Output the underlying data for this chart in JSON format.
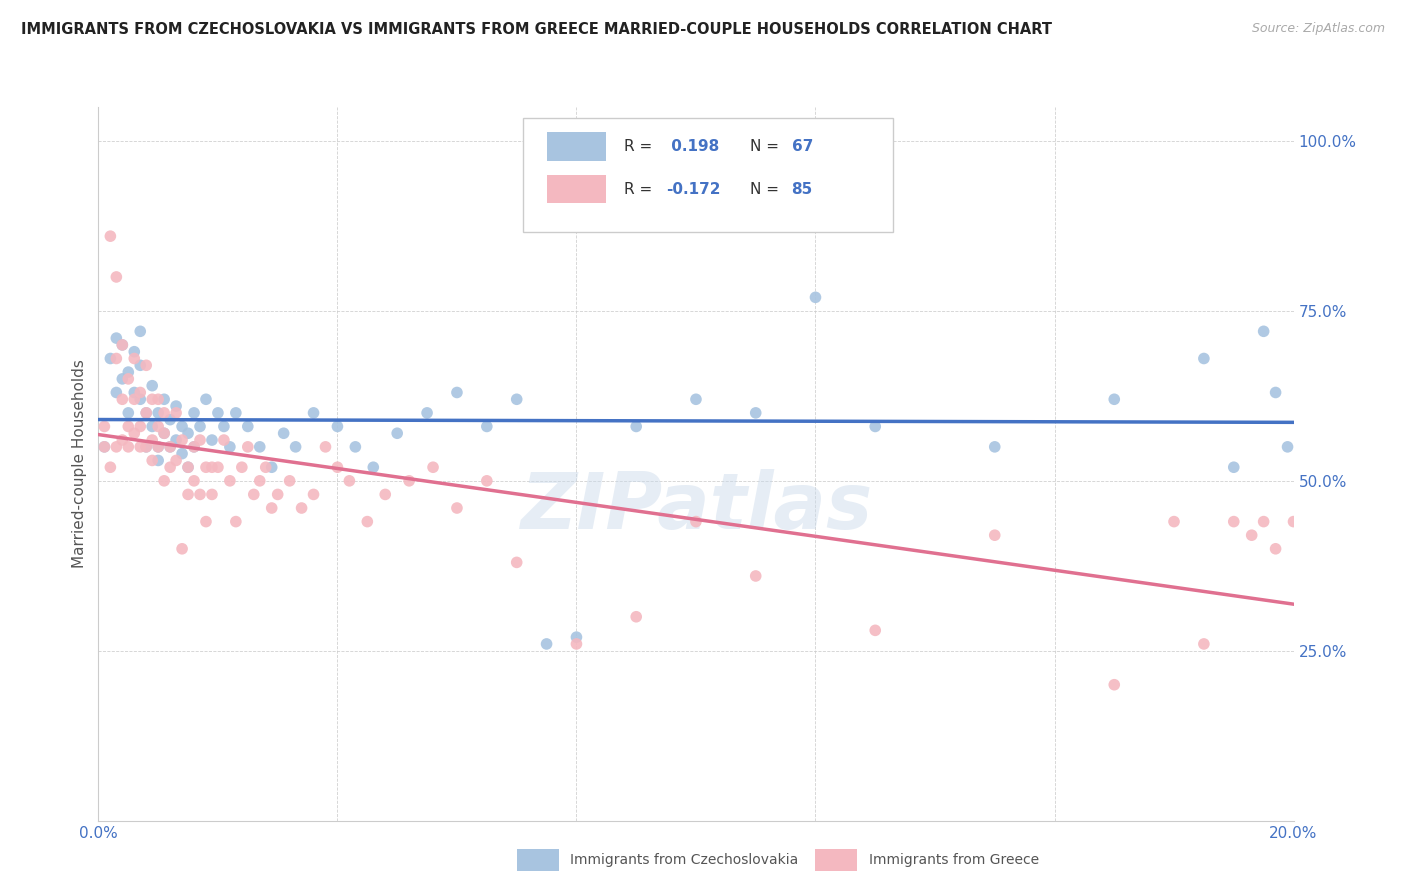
{
  "title": "IMMIGRANTS FROM CZECHOSLOVAKIA VS IMMIGRANTS FROM GREECE MARRIED-COUPLE HOUSEHOLDS CORRELATION CHART",
  "source": "Source: ZipAtlas.com",
  "ylabel": "Married-couple Households",
  "xmin": 0.0,
  "xmax": 0.2,
  "ymin": 0.0,
  "ymax": 1.05,
  "x_ticks": [
    0.0,
    0.04,
    0.08,
    0.12,
    0.16,
    0.2
  ],
  "y_ticks": [
    0.0,
    0.25,
    0.5,
    0.75,
    1.0
  ],
  "R_czech": 0.198,
  "N_czech": 67,
  "R_greece": -0.172,
  "N_greece": 85,
  "color_czech": "#a8c4e0",
  "color_greece": "#f4b8c0",
  "line_color_czech": "#4472c4",
  "line_color_greece": "#e07090",
  "watermark": "ZIPatlas",
  "czech_x": [
    0.001,
    0.002,
    0.003,
    0.003,
    0.004,
    0.004,
    0.005,
    0.005,
    0.006,
    0.006,
    0.007,
    0.007,
    0.007,
    0.008,
    0.008,
    0.009,
    0.009,
    0.01,
    0.01,
    0.01,
    0.011,
    0.011,
    0.012,
    0.012,
    0.013,
    0.013,
    0.014,
    0.014,
    0.015,
    0.015,
    0.016,
    0.016,
    0.017,
    0.018,
    0.019,
    0.02,
    0.021,
    0.022,
    0.023,
    0.025,
    0.027,
    0.029,
    0.031,
    0.033,
    0.036,
    0.04,
    0.043,
    0.046,
    0.05,
    0.055,
    0.06,
    0.065,
    0.07,
    0.075,
    0.08,
    0.09,
    0.1,
    0.11,
    0.12,
    0.13,
    0.15,
    0.17,
    0.185,
    0.19,
    0.195,
    0.197,
    0.199
  ],
  "czech_y": [
    0.55,
    0.68,
    0.63,
    0.71,
    0.65,
    0.7,
    0.6,
    0.66,
    0.63,
    0.69,
    0.62,
    0.67,
    0.72,
    0.55,
    0.6,
    0.58,
    0.64,
    0.55,
    0.6,
    0.53,
    0.57,
    0.62,
    0.55,
    0.59,
    0.56,
    0.61,
    0.54,
    0.58,
    0.52,
    0.57,
    0.55,
    0.6,
    0.58,
    0.62,
    0.56,
    0.6,
    0.58,
    0.55,
    0.6,
    0.58,
    0.55,
    0.52,
    0.57,
    0.55,
    0.6,
    0.58,
    0.55,
    0.52,
    0.57,
    0.6,
    0.63,
    0.58,
    0.62,
    0.26,
    0.27,
    0.58,
    0.62,
    0.6,
    0.77,
    0.58,
    0.55,
    0.62,
    0.68,
    0.52,
    0.72,
    0.63,
    0.55
  ],
  "greece_x": [
    0.001,
    0.001,
    0.002,
    0.002,
    0.003,
    0.003,
    0.003,
    0.004,
    0.004,
    0.004,
    0.005,
    0.005,
    0.005,
    0.006,
    0.006,
    0.006,
    0.007,
    0.007,
    0.007,
    0.008,
    0.008,
    0.008,
    0.009,
    0.009,
    0.009,
    0.01,
    0.01,
    0.01,
    0.011,
    0.011,
    0.011,
    0.012,
    0.012,
    0.013,
    0.013,
    0.014,
    0.014,
    0.015,
    0.015,
    0.016,
    0.016,
    0.017,
    0.017,
    0.018,
    0.018,
    0.019,
    0.019,
    0.02,
    0.021,
    0.022,
    0.023,
    0.024,
    0.025,
    0.026,
    0.027,
    0.028,
    0.029,
    0.03,
    0.032,
    0.034,
    0.036,
    0.038,
    0.04,
    0.042,
    0.045,
    0.048,
    0.052,
    0.056,
    0.06,
    0.065,
    0.07,
    0.08,
    0.09,
    0.1,
    0.11,
    0.13,
    0.15,
    0.17,
    0.18,
    0.185,
    0.19,
    0.193,
    0.195,
    0.197,
    0.2
  ],
  "greece_y": [
    0.55,
    0.58,
    0.52,
    0.86,
    0.68,
    0.55,
    0.8,
    0.62,
    0.56,
    0.7,
    0.65,
    0.58,
    0.55,
    0.62,
    0.57,
    0.68,
    0.63,
    0.55,
    0.58,
    0.67,
    0.6,
    0.55,
    0.53,
    0.56,
    0.62,
    0.55,
    0.62,
    0.58,
    0.5,
    0.6,
    0.57,
    0.52,
    0.55,
    0.6,
    0.53,
    0.4,
    0.56,
    0.48,
    0.52,
    0.55,
    0.5,
    0.56,
    0.48,
    0.52,
    0.44,
    0.52,
    0.48,
    0.52,
    0.56,
    0.5,
    0.44,
    0.52,
    0.55,
    0.48,
    0.5,
    0.52,
    0.46,
    0.48,
    0.5,
    0.46,
    0.48,
    0.55,
    0.52,
    0.5,
    0.44,
    0.48,
    0.5,
    0.52,
    0.46,
    0.5,
    0.38,
    0.26,
    0.3,
    0.44,
    0.36,
    0.28,
    0.42,
    0.2,
    0.44,
    0.26,
    0.44,
    0.42,
    0.44,
    0.4,
    0.44
  ]
}
